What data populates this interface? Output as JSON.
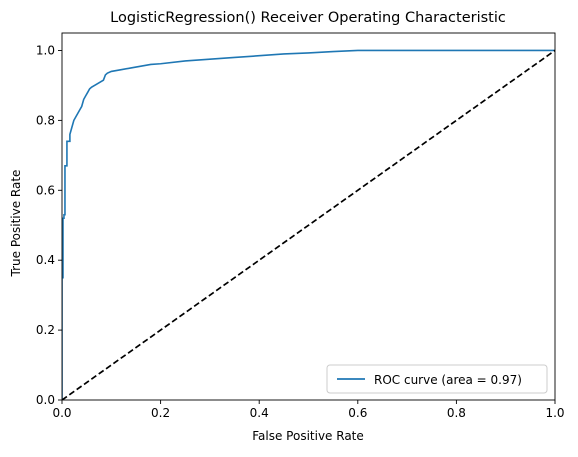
{
  "chart_data": {
    "type": "line",
    "title": "LogisticRegression() Receiver Operating Characteristic",
    "xlabel": "False Positive Rate",
    "ylabel": "True Positive Rate",
    "xlim": [
      0.0,
      1.0
    ],
    "ylim": [
      0.0,
      1.05
    ],
    "xticks": [
      0.0,
      0.2,
      0.4,
      0.6,
      0.8,
      1.0
    ],
    "xtick_labels": [
      "0.0",
      "0.2",
      "0.4",
      "0.6",
      "0.8",
      "1.0"
    ],
    "yticks": [
      0.0,
      0.2,
      0.4,
      0.6,
      0.8,
      1.0
    ],
    "ytick_labels": [
      "0.0",
      "0.2",
      "0.4",
      "0.6",
      "0.8",
      "1.0"
    ],
    "grid": false,
    "legend_position": "lower-right",
    "series": [
      {
        "name": "ROC curve (area = 0.97)",
        "style": "solid",
        "color": "#1f77b4",
        "x": [
          0.0,
          0.0,
          0.002,
          0.002,
          0.004,
          0.004,
          0.006,
          0.006,
          0.01,
          0.01,
          0.016,
          0.016,
          0.02,
          0.024,
          0.028,
          0.032,
          0.036,
          0.04,
          0.044,
          0.048,
          0.052,
          0.056,
          0.06,
          0.066,
          0.072,
          0.078,
          0.084,
          0.088,
          0.092,
          0.1,
          0.12,
          0.14,
          0.16,
          0.18,
          0.2,
          0.25,
          0.3,
          0.35,
          0.4,
          0.45,
          0.5,
          0.55,
          0.6,
          1.0
        ],
        "y": [
          0.0,
          0.35,
          0.35,
          0.52,
          0.52,
          0.53,
          0.53,
          0.67,
          0.67,
          0.74,
          0.74,
          0.76,
          0.78,
          0.8,
          0.81,
          0.82,
          0.83,
          0.84,
          0.86,
          0.87,
          0.88,
          0.89,
          0.895,
          0.9,
          0.905,
          0.91,
          0.915,
          0.93,
          0.935,
          0.94,
          0.945,
          0.95,
          0.955,
          0.96,
          0.962,
          0.97,
          0.975,
          0.98,
          0.985,
          0.99,
          0.993,
          0.997,
          1.0,
          1.0
        ]
      },
      {
        "name": "",
        "style": "dashed",
        "color": "#000000",
        "x": [
          0.0,
          1.0
        ],
        "y": [
          0.0,
          1.0
        ]
      }
    ]
  }
}
